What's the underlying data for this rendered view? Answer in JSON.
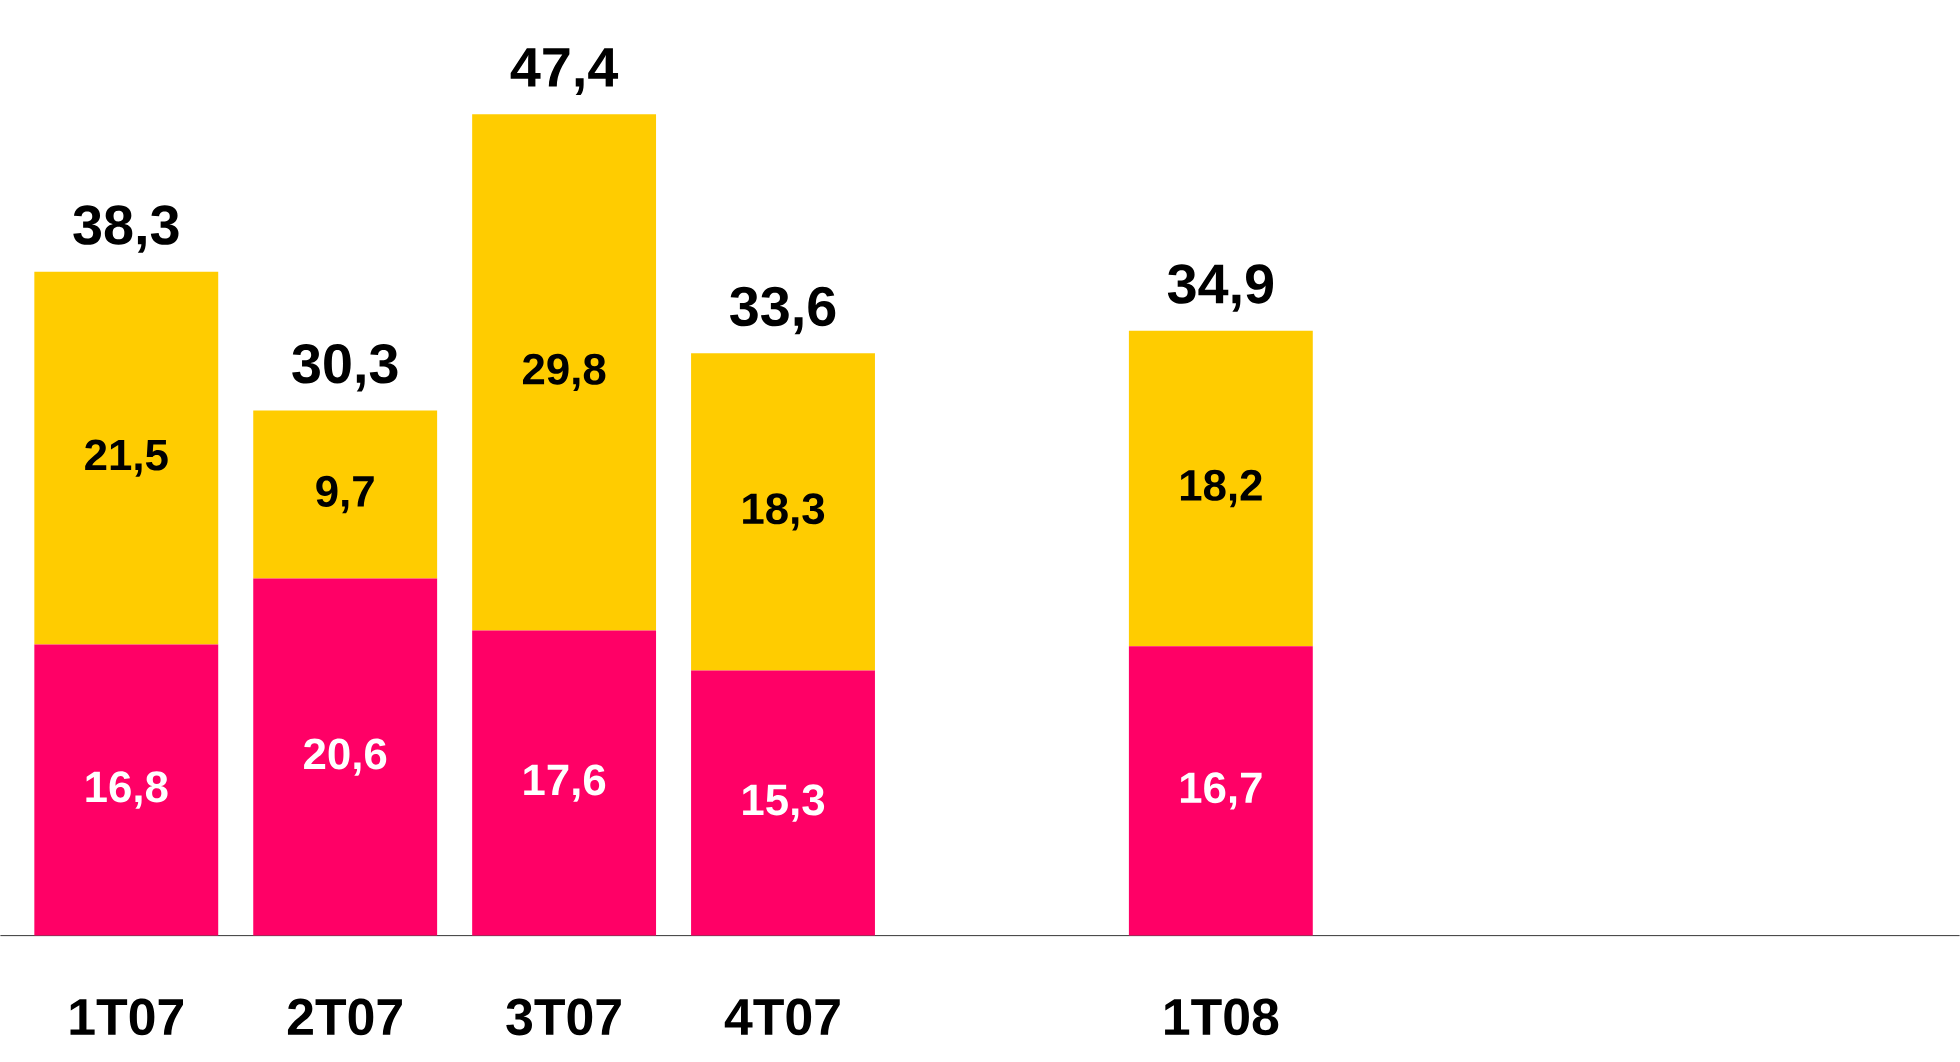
{
  "chart_data": {
    "type": "bar",
    "stacked": true,
    "categories": [
      "1T07",
      "2T07",
      "3T07",
      "4T07",
      null,
      "1T08",
      null,
      null,
      null
    ],
    "series": [
      {
        "color": "#ff0066",
        "values": [
          16.8,
          20.6,
          17.6,
          15.3,
          null,
          16.7,
          null,
          null,
          null
        ],
        "value_labels": [
          "16,8",
          "20,6",
          "17,6",
          "15,3",
          null,
          "16,7",
          null,
          null,
          null
        ]
      },
      {
        "color": "#ffcc00",
        "values": [
          21.5,
          9.7,
          29.8,
          18.3,
          null,
          18.2,
          null,
          null,
          null
        ],
        "value_labels": [
          "21,5",
          "9,7",
          "29,8",
          "18,3",
          null,
          "18,2",
          null,
          null,
          null
        ]
      }
    ],
    "totals": [
      "38,3",
      "30,3",
      "47,4",
      "33,6",
      null,
      "34,9",
      null,
      null,
      null
    ]
  }
}
